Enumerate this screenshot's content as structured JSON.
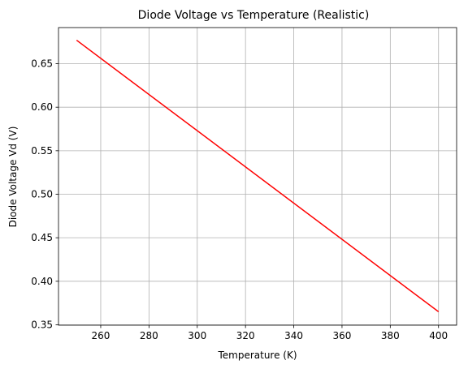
{
  "chart_data": {
    "type": "line",
    "title": "Diode Voltage vs Temperature (Realistic)",
    "xlabel": "Temperature (K)",
    "ylabel": "Diode Voltage Vd (V)",
    "xlim": [
      242.5,
      407.5
    ],
    "ylim": [
      0.3495,
      0.6915
    ],
    "xticks": [
      260,
      280,
      300,
      320,
      340,
      360,
      380,
      400
    ],
    "yticks": [
      0.35,
      0.4,
      0.45,
      0.5,
      0.55,
      0.6,
      0.65
    ],
    "xtick_labels": [
      "260",
      "280",
      "300",
      "320",
      "340",
      "360",
      "380",
      "400"
    ],
    "ytick_labels": [
      "0.35",
      "0.40",
      "0.45",
      "0.50",
      "0.55",
      "0.60",
      "0.65"
    ],
    "grid": true,
    "series": [
      {
        "color": "#ff0000",
        "x": [
          250,
          400
        ],
        "y": [
          0.677,
          0.365
        ]
      }
    ]
  },
  "colors": {
    "line": "#ff0000",
    "grid": "#b0b0b0",
    "axes": "#000000",
    "background": "#ffffff"
  }
}
